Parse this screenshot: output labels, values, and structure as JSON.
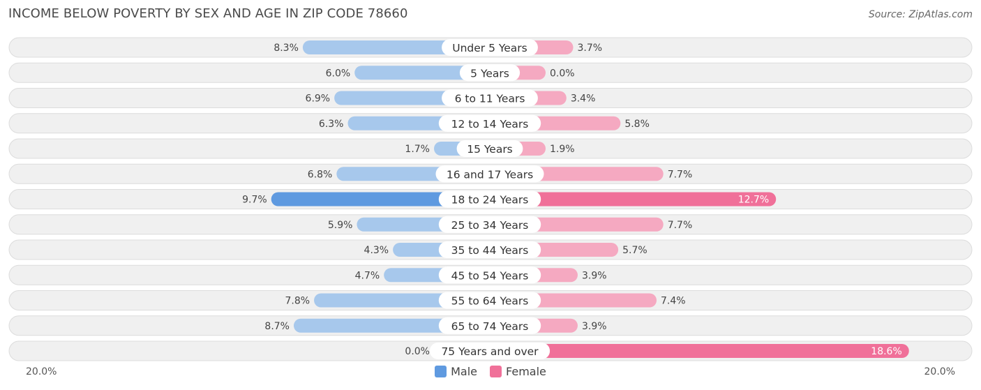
{
  "title": "INCOME BELOW POVERTY BY SEX AND AGE IN ZIP CODE 78660",
  "source": "Source: ZipAtlas.com",
  "colors": {
    "male_light": "#a7c8ec",
    "male_dark": "#5f9ae0",
    "female_light": "#f5a9c1",
    "female_dark": "#f07099",
    "row_bg": "#f0f0f0",
    "row_border": "#dcdcdc"
  },
  "axis": {
    "left_label": "20.0%",
    "right_label": "20.0%"
  },
  "legend": {
    "male": "Male",
    "female": "Female"
  },
  "chart_data": {
    "type": "bar",
    "orientation": "diverging-horizontal",
    "title": "INCOME BELOW POVERTY BY SEX AND AGE IN ZIP CODE 78660",
    "xlim": [
      -20,
      20
    ],
    "categories": [
      "Under 5 Years",
      "5 Years",
      "6 to 11 Years",
      "12 to 14 Years",
      "15 Years",
      "16 and 17 Years",
      "18 to 24 Years",
      "25 to 34 Years",
      "35 to 44 Years",
      "45 to 54 Years",
      "55 to 64 Years",
      "65 to 74 Years",
      "75 Years and over"
    ],
    "series": [
      {
        "name": "Male",
        "values": [
          8.3,
          6.0,
          6.9,
          6.3,
          1.7,
          6.8,
          9.7,
          5.9,
          4.3,
          4.7,
          7.8,
          8.7,
          0.0
        ],
        "labels": [
          "8.3%",
          "6.0%",
          "6.9%",
          "6.3%",
          "1.7%",
          "6.8%",
          "9.7%",
          "5.9%",
          "4.3%",
          "4.7%",
          "7.8%",
          "8.7%",
          "0.0%"
        ]
      },
      {
        "name": "Female",
        "values": [
          3.7,
          0.0,
          3.4,
          5.8,
          1.9,
          7.7,
          12.7,
          7.7,
          5.7,
          3.9,
          7.4,
          3.9,
          18.6
        ],
        "labels": [
          "3.7%",
          "0.0%",
          "3.4%",
          "5.8%",
          "1.9%",
          "7.7%",
          "12.7%",
          "7.7%",
          "5.7%",
          "3.9%",
          "7.4%",
          "3.9%",
          "18.6%"
        ]
      }
    ]
  }
}
